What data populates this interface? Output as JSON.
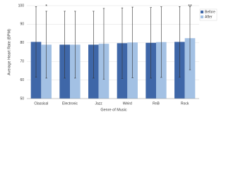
{
  "chart_data": {
    "type": "bar",
    "x_label": "Genre of Music",
    "y_label": "Average Heart Rate (BPM)",
    "categories": [
      "Classical",
      "Electronic",
      "Jazz",
      "Weird",
      "RnB",
      "Rock"
    ],
    "series": [
      {
        "name": "Before",
        "color": "#3f67a8",
        "values": [
          80.5,
          79,
          79,
          79.8,
          80,
          80.5
        ],
        "errors": [
          19,
          18,
          18,
          19,
          19,
          19
        ]
      },
      {
        "name": "After",
        "color": "#a3c1e4",
        "values": [
          79,
          79,
          79.5,
          80.2,
          80.4,
          82.5
        ],
        "errors": [
          18,
          18,
          19,
          19,
          19,
          17
        ]
      }
    ],
    "annotations": [
      {
        "label": "*",
        "category": "Classical"
      },
      {
        "label": "**",
        "category": "Rock"
      }
    ],
    "ylim": [
      50,
      100
    ],
    "yticks": [
      50,
      60,
      70,
      80,
      90,
      100
    ],
    "grid": true,
    "legend": "top-right"
  }
}
